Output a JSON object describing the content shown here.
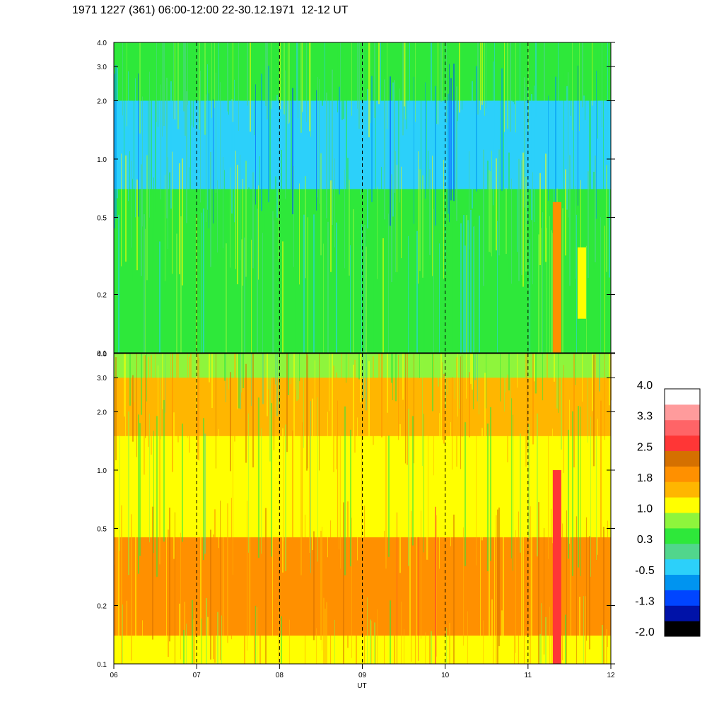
{
  "header": {
    "title": "1971 1227 (361) 06:00-12:00 22-30.12.1971  12-12 UT"
  },
  "chart_data": {
    "type": "heatmap",
    "title": "1971 1227 (361) 06:00-12:00 22-30.12.1971  12-12 UT",
    "xlabel": "UT",
    "x_tick_labels": [
      "06",
      "07",
      "08",
      "09",
      "10",
      "11",
      "12"
    ],
    "x_range": [
      6,
      12
    ],
    "y_scale": "log",
    "y_tick_labels": [
      "0.1",
      "0.2",
      "0.5",
      "1.0",
      "2.0",
      "3.0",
      "4.0"
    ],
    "y_ticks": [
      0.1,
      0.2,
      0.5,
      1.0,
      2.0,
      3.0,
      4.0
    ],
    "y_range": [
      0.1,
      4.0
    ],
    "grid": "vertical dashed lines at each hour",
    "panels": [
      {
        "name": "upper",
        "dominant_level": 0.3,
        "bands": [
          {
            "y_range": [
              0.1,
              0.35
            ],
            "level": 0.3
          },
          {
            "y_range": [
              0.35,
              0.7
            ],
            "level": 0.6
          },
          {
            "y_range": [
              0.7,
              2.0
            ],
            "level": -0.2
          },
          {
            "y_range": [
              2.0,
              4.0
            ],
            "level": 0.5
          }
        ],
        "events": [
          {
            "x": 11.35,
            "y_range": [
              0.1,
              0.6
            ],
            "level": 1.8
          },
          {
            "x": 11.65,
            "y_range": [
              0.15,
              0.35
            ],
            "level": 1.2
          }
        ]
      },
      {
        "name": "lower",
        "dominant_level": 1.6,
        "bands": [
          {
            "y_range": [
              0.1,
              0.14
            ],
            "level": 1.1
          },
          {
            "y_range": [
              0.14,
              0.45
            ],
            "level": 1.8
          },
          {
            "y_range": [
              0.45,
              1.5
            ],
            "level": 1.0
          },
          {
            "y_range": [
              1.5,
              3.0
            ],
            "level": 1.7
          },
          {
            "y_range": [
              3.0,
              4.0
            ],
            "level": 0.9
          }
        ],
        "events": [
          {
            "x": 11.35,
            "y_range": [
              0.1,
              1.0
            ],
            "level": 2.8
          }
        ]
      }
    ],
    "colorbar": {
      "tick_labels": [
        "4.0",
        "3.3",
        "2.5",
        "1.8",
        "1.0",
        "0.3",
        "-0.5",
        "-1.3",
        "-2.0"
      ],
      "range": [
        -2.0,
        4.0
      ],
      "colors": [
        "#000000",
        "#0012a8",
        "#0045ff",
        "#0094f0",
        "#2cd0fa",
        "#51d68c",
        "#2ee83a",
        "#8ef53c",
        "#ffff00",
        "#ffb600",
        "#ff9000",
        "#d57000",
        "#ff3636",
        "#ff6467",
        "#ff9b9c",
        "#ffffff"
      ]
    }
  }
}
